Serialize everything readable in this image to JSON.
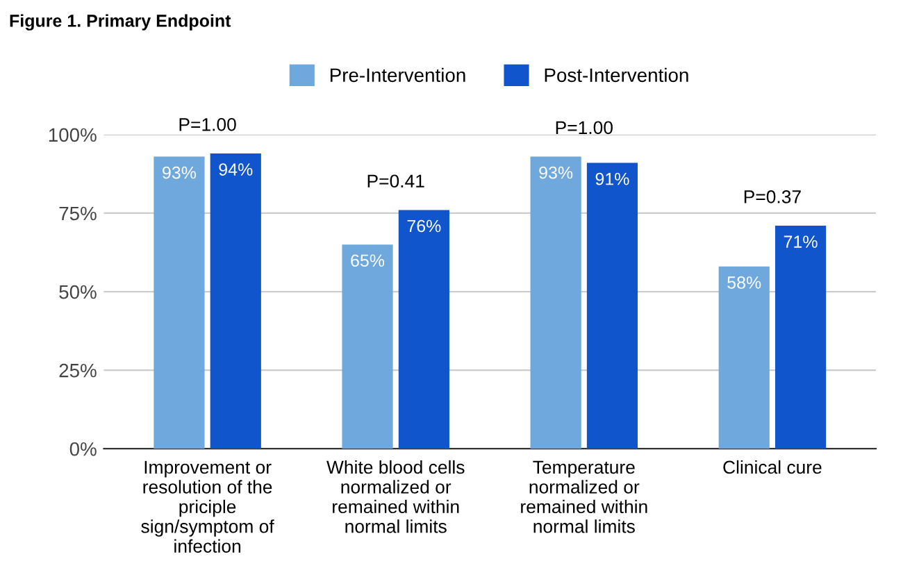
{
  "chart_data": {
    "type": "bar",
    "title": "Figure 1. Primary Endpoint",
    "categories": [
      "Improvement or\nresolution of the\npriciple\nsign/symptom of\ninfection",
      "White blood cells\nnormalized or\nremained within\nnormal limits",
      "Temperature\nnormalized or\nremained within\nnormal limits",
      "Clinical cure"
    ],
    "series": [
      {
        "name": "Pre-Intervention",
        "color": "#6fa8dc",
        "values": [
          93,
          65,
          93,
          58
        ],
        "value_labels": [
          "93%",
          "65%",
          "93%",
          "58%"
        ]
      },
      {
        "name": "Post-Intervention",
        "color": "#1155cc",
        "values": [
          94,
          76,
          91,
          71
        ],
        "value_labels": [
          "94%",
          "76%",
          "91%",
          "71%"
        ]
      }
    ],
    "ylim": [
      0,
      100
    ],
    "yticks": [
      {
        "value": 0,
        "label": "0%"
      },
      {
        "value": 25,
        "label": "25%"
      },
      {
        "value": 50,
        "label": "50%"
      },
      {
        "value": 75,
        "label": "75%"
      },
      {
        "value": 100,
        "label": "100%"
      }
    ],
    "grid": "y",
    "legend": "top",
    "annotations": [
      "P=1.00",
      "P=0.41",
      "P=1.00",
      "P=0.37"
    ]
  }
}
